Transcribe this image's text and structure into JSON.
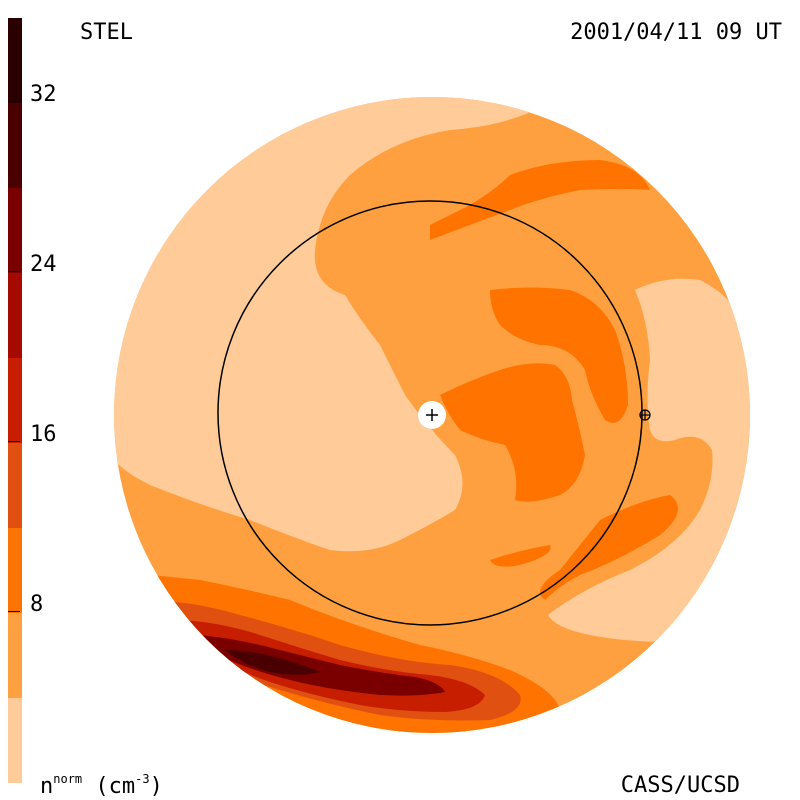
{
  "header": {
    "source": "STEL",
    "datetime": "2001/04/11 09 UT"
  },
  "footer": {
    "credit": "CASS/UCSD"
  },
  "colorbar": {
    "unit_base": "n",
    "unit_sup": "norm",
    "unit_paren": "(cm",
    "unit_exp": "-3",
    "unit_close": ")",
    "ticks": [
      "32",
      "24",
      "16",
      "8"
    ],
    "colors": [
      "#2a0000",
      "#4a0000",
      "#7a0000",
      "#a40a00",
      "#c81e00",
      "#e05010",
      "#ff7300",
      "#ffa040",
      "#ffcc99"
    ]
  },
  "colors": {
    "lightest": "#ffcc99",
    "light": "#ffa040",
    "mid": "#ff7300",
    "deep": "#e05010",
    "red": "#c81e00",
    "dark": "#7a0000",
    "darkest": "#4a0000"
  }
}
